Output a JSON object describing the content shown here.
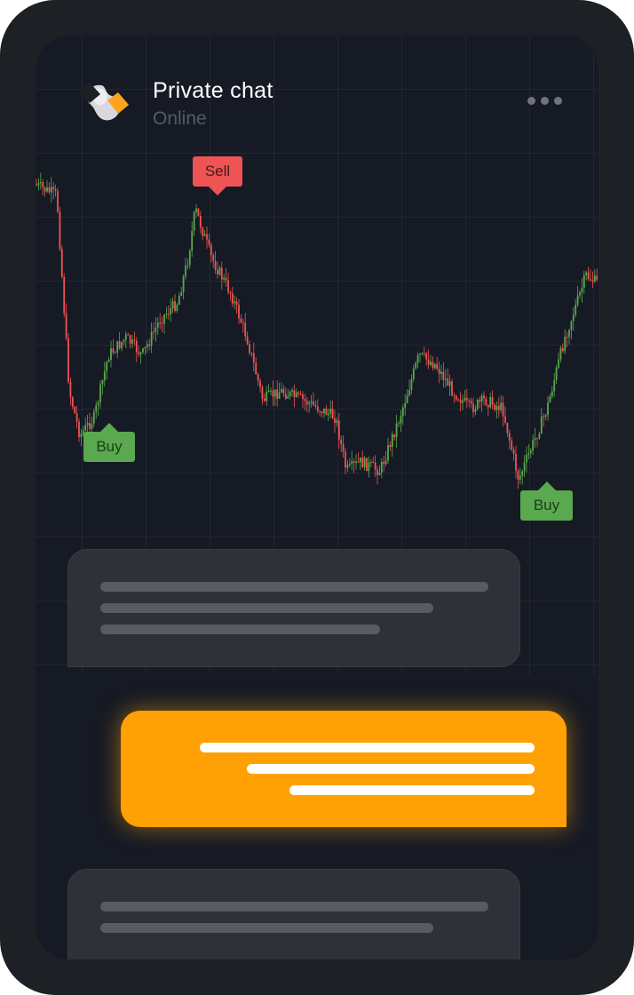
{
  "header": {
    "title": "Private chat",
    "status": "Online",
    "avatar_icon": "brand-logo",
    "menu_icon": "more-dots-icon"
  },
  "chart": {
    "markers": [
      {
        "label": "Sell",
        "type": "sell"
      },
      {
        "label": "Buy",
        "type": "buy"
      },
      {
        "label": "Buy",
        "type": "buy"
      }
    ],
    "colors": {
      "up": "#5aa84f",
      "down": "#ee5454",
      "sell": "#ee5454",
      "buy": "#5aa84f"
    }
  },
  "messages": [
    {
      "direction": "incoming",
      "content": "placeholder-lines"
    },
    {
      "direction": "outgoing",
      "content": "placeholder-lines"
    },
    {
      "direction": "incoming",
      "content": "placeholder-lines"
    }
  ],
  "colors": {
    "accent": "#ffa104",
    "background": "#161a24",
    "frame": "#1d2024",
    "bubble_in": "#2e3137"
  }
}
